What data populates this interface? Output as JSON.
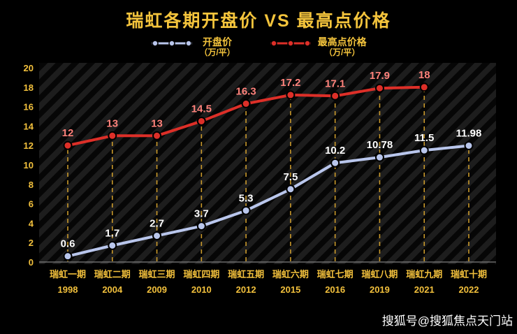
{
  "title": "瑞虹各期开盘价 VS 最高点价格",
  "legend": [
    {
      "label": "开盘价",
      "sublabel": "（万/平）",
      "color": "#b9c6ec"
    },
    {
      "label": "最高点价格",
      "sublabel": "（万/平）",
      "color": "#dd2f28"
    }
  ],
  "watermark": "搜狐号@搜狐焦点天门站",
  "chart_data": {
    "type": "line",
    "categories": [
      {
        "name": "瑞虹一期",
        "year": "1998"
      },
      {
        "name": "瑞虹二期",
        "year": "2004"
      },
      {
        "name": "瑞虹三期",
        "year": "2009"
      },
      {
        "name": "瑞虹四期",
        "year": "2010"
      },
      {
        "name": "瑞虹五期",
        "year": "2012"
      },
      {
        "name": "瑞虹六期",
        "year": "2015"
      },
      {
        "name": "瑞虹七期",
        "year": "2016"
      },
      {
        "name": "瑞虹八期",
        "year": "2019"
      },
      {
        "name": "瑞虹九期",
        "year": "2021"
      },
      {
        "name": "瑞虹十期",
        "year": "2022"
      }
    ],
    "series": [
      {
        "id": "peak",
        "name": "最高点价格",
        "color": "#dd2f28",
        "label_color": "#ff827b",
        "values": [
          12,
          13,
          13,
          14.5,
          16.3,
          17.2,
          17.1,
          17.9,
          18,
          null
        ]
      },
      {
        "id": "opening",
        "name": "开盘价",
        "color": "#b9c6ec",
        "label_color": "#ffffff",
        "values": [
          0.6,
          1.7,
          2.7,
          3.7,
          5.3,
          7.5,
          10.2,
          10.78,
          11.5,
          11.98
        ]
      }
    ],
    "title": "瑞虹各期开盘价 VS 最高点价格",
    "xlabel": "",
    "ylabel": "",
    "ylim": [
      0,
      20
    ],
    "ytick_step": 2,
    "grid": false,
    "legend_position": "top",
    "guide_color": "#c9992b"
  }
}
